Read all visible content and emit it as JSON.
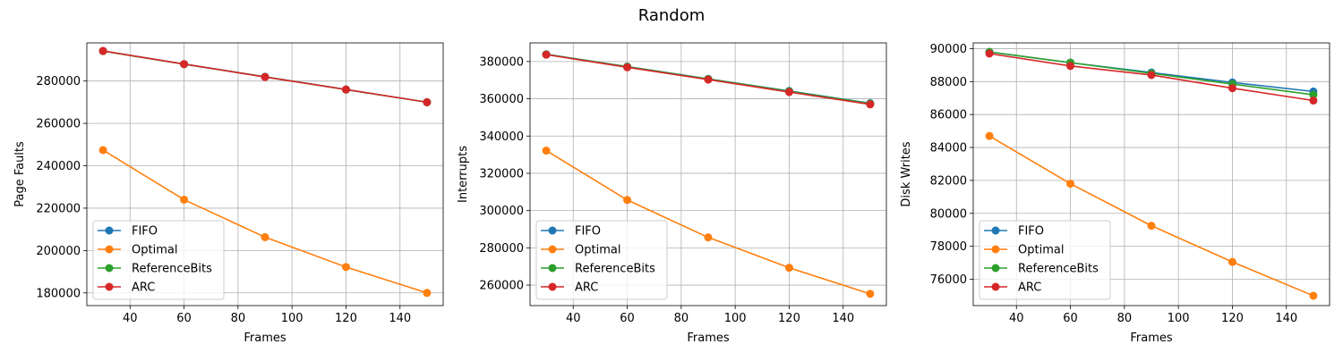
{
  "figure": {
    "suptitle": "Random"
  },
  "colors": {
    "FIFO": "#1f77b4",
    "Optimal": "#ff7f0e",
    "ReferenceBits": "#2ca02c",
    "ARC": "#d62728"
  },
  "chart_data": [
    {
      "type": "line",
      "xlabel": "Frames",
      "ylabel": "Page Faults",
      "xlim": [
        24,
        156
      ],
      "ylim": [
        174000,
        298000
      ],
      "xticks": [
        40,
        60,
        80,
        100,
        120,
        140
      ],
      "yticks": [
        180000,
        200000,
        220000,
        240000,
        260000,
        280000
      ],
      "grid": true,
      "legend": "lower-left",
      "x": [
        30,
        60,
        90,
        120,
        150
      ],
      "series": [
        {
          "name": "FIFO",
          "values": [
            294200,
            288000,
            282000,
            276000,
            270000
          ]
        },
        {
          "name": "Optimal",
          "values": [
            247400,
            224000,
            206300,
            192200,
            180000
          ]
        },
        {
          "name": "ReferenceBits",
          "values": [
            294100,
            287950,
            281950,
            275950,
            270000
          ]
        },
        {
          "name": "ARC",
          "values": [
            294200,
            288000,
            281900,
            276000,
            270000
          ]
        }
      ]
    },
    {
      "type": "line",
      "xlabel": "Frames",
      "ylabel": "Interrupts",
      "xlim": [
        24,
        156
      ],
      "ylim": [
        249000,
        390000
      ],
      "xticks": [
        40,
        60,
        80,
        100,
        120,
        140
      ],
      "yticks": [
        260000,
        280000,
        300000,
        320000,
        340000,
        360000,
        380000
      ],
      "grid": true,
      "legend": "lower-left",
      "x": [
        30,
        60,
        90,
        120,
        150
      ],
      "series": [
        {
          "name": "FIFO",
          "values": [
            383900,
            377300,
            370700,
            364200,
            357600
          ]
        },
        {
          "name": "Optimal",
          "values": [
            332200,
            305700,
            285600,
            269300,
            255300
          ]
        },
        {
          "name": "ReferenceBits",
          "values": [
            383800,
            377200,
            370600,
            364000,
            357400
          ]
        },
        {
          "name": "ARC",
          "values": [
            383700,
            376900,
            370300,
            363600,
            357000
          ]
        }
      ]
    },
    {
      "type": "line",
      "xlabel": "Frames",
      "ylabel": "Disk Writes",
      "xlim": [
        24,
        156
      ],
      "ylim": [
        74400,
        90350
      ],
      "xticks": [
        40,
        60,
        80,
        100,
        120,
        140
      ],
      "yticks": [
        76000,
        78000,
        80000,
        82000,
        84000,
        86000,
        88000,
        90000
      ],
      "grid": true,
      "legend": "lower-left",
      "x": [
        30,
        60,
        90,
        120,
        150
      ],
      "series": [
        {
          "name": "FIFO",
          "values": [
            89800,
            89150,
            88550,
            87950,
            87400
          ]
        },
        {
          "name": "Optimal",
          "values": [
            84700,
            81800,
            79250,
            77050,
            75000
          ]
        },
        {
          "name": "ReferenceBits",
          "values": [
            89800,
            89150,
            88500,
            87850,
            87200
          ]
        },
        {
          "name": "ARC",
          "values": [
            89700,
            88950,
            88400,
            87600,
            86850
          ]
        }
      ]
    }
  ]
}
